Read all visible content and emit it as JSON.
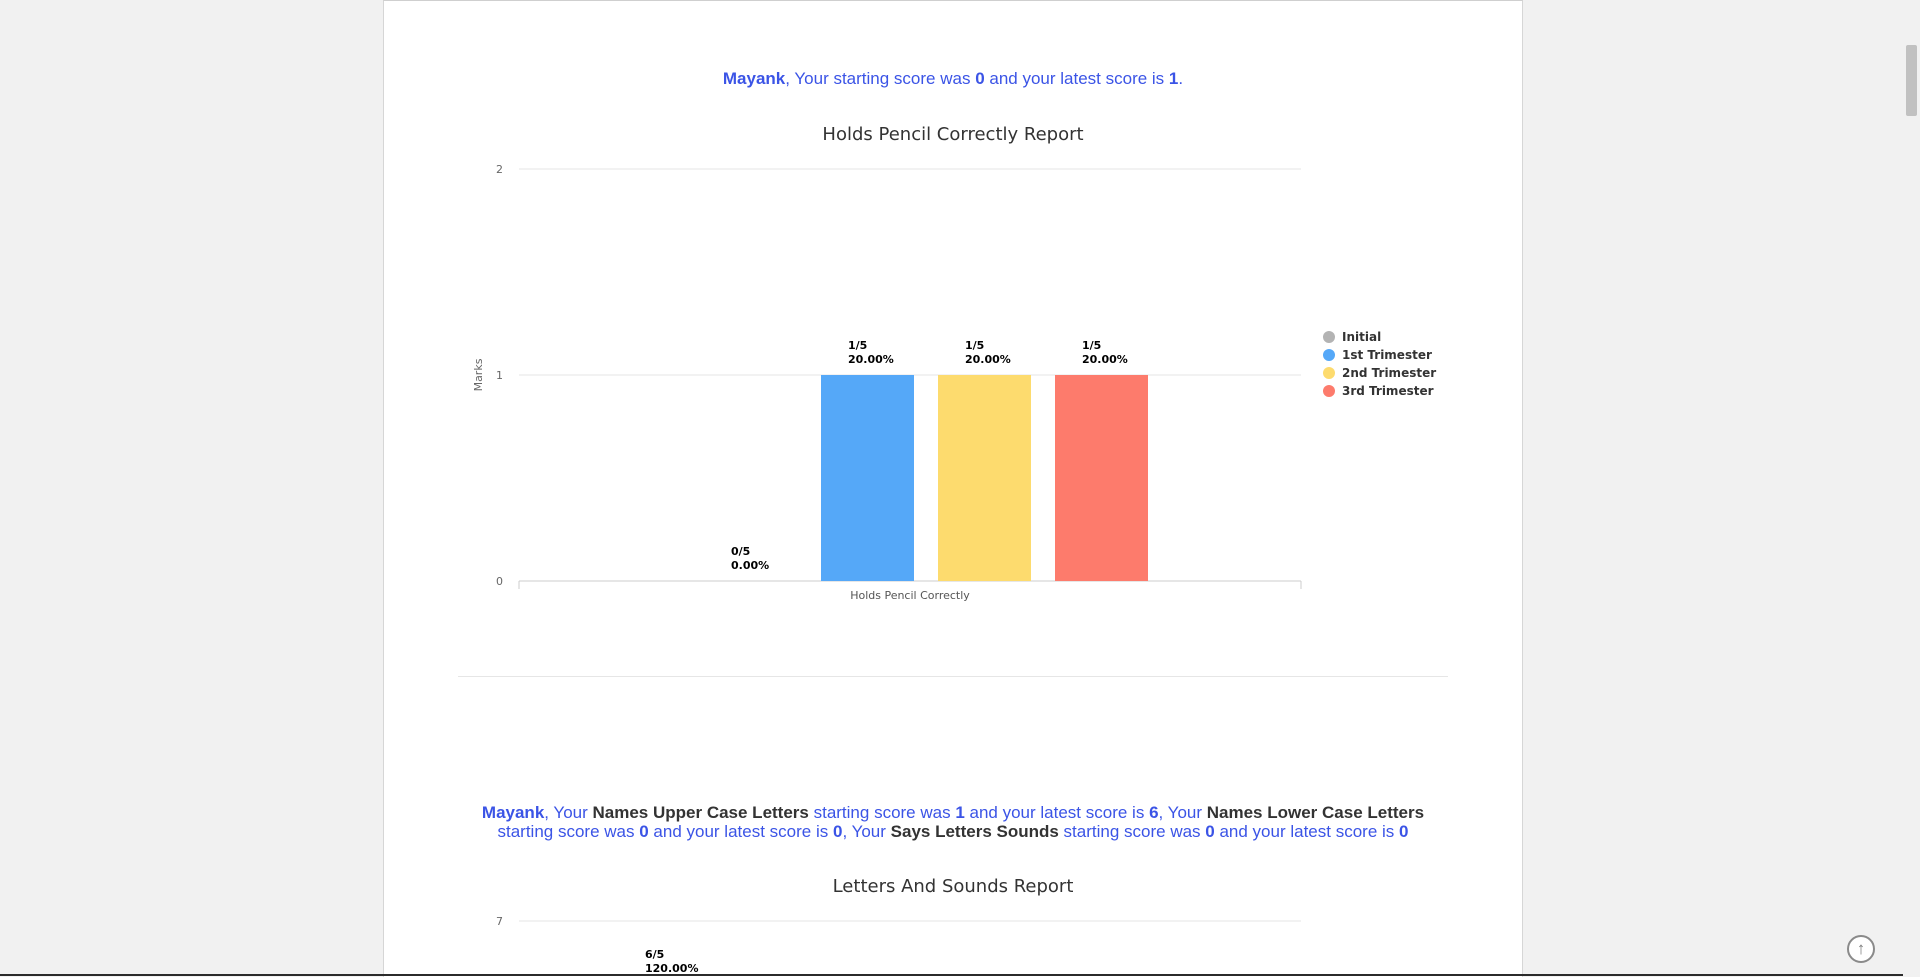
{
  "summary1": {
    "name": "Mayank",
    "t1": ", Your starting score was ",
    "start": "0",
    "t2": " and your latest score is ",
    "latest": "1",
    "t3": "."
  },
  "summary2": {
    "name": "Mayank",
    "a1": ", Your ",
    "skill1": "Names Upper Case Letters",
    "a2": " starting score was ",
    "s1_start": "1",
    "a3": " and your latest score is ",
    "s1_latest": "6",
    "a4": ", Your ",
    "skill2": "Names Lower Case Letters",
    "a5": " starting score was ",
    "s2_start": "0",
    "a6": " and your latest score is ",
    "s2_latest": "0",
    "a7": ", Your ",
    "skill3": "Says Letters Sounds",
    "a8": " starting score was ",
    "s3_start": "0",
    "a9": " and your latest score is ",
    "s3_latest": "0"
  },
  "scroll_top_icon": "arrow-up-circle-icon",
  "chart_data": [
    {
      "type": "bar",
      "title": "Holds Pencil Correctly Report",
      "ylabel": "Marks",
      "categories": [
        "Holds Pencil Correctly"
      ],
      "ylim": [
        0,
        2
      ],
      "yticks": [
        "0",
        "1",
        "2"
      ],
      "grid": true,
      "legend_position": "right",
      "series": [
        {
          "name": "Initial",
          "color": "#b3b3b3",
          "values": [
            0
          ],
          "label_top": "0/5",
          "label_bottom": "0.00%"
        },
        {
          "name": "1st Trimester",
          "color": "#55a8f8",
          "values": [
            1
          ],
          "label_top": "1/5",
          "label_bottom": "20.00%"
        },
        {
          "name": "2nd Trimester",
          "color": "#fddb6e",
          "values": [
            1
          ],
          "label_top": "1/5",
          "label_bottom": "20.00%"
        },
        {
          "name": "3rd Trimester",
          "color": "#fd7b6c",
          "values": [
            1
          ],
          "label_top": "1/5",
          "label_bottom": "20.00%"
        }
      ]
    },
    {
      "type": "bar",
      "title": "Letters And Sounds Report",
      "ylim": [
        0,
        7
      ],
      "yticks": [
        "7"
      ],
      "grid": true,
      "visible_labels": [
        {
          "top": "6/5",
          "bottom": "120.00%"
        }
      ]
    }
  ]
}
